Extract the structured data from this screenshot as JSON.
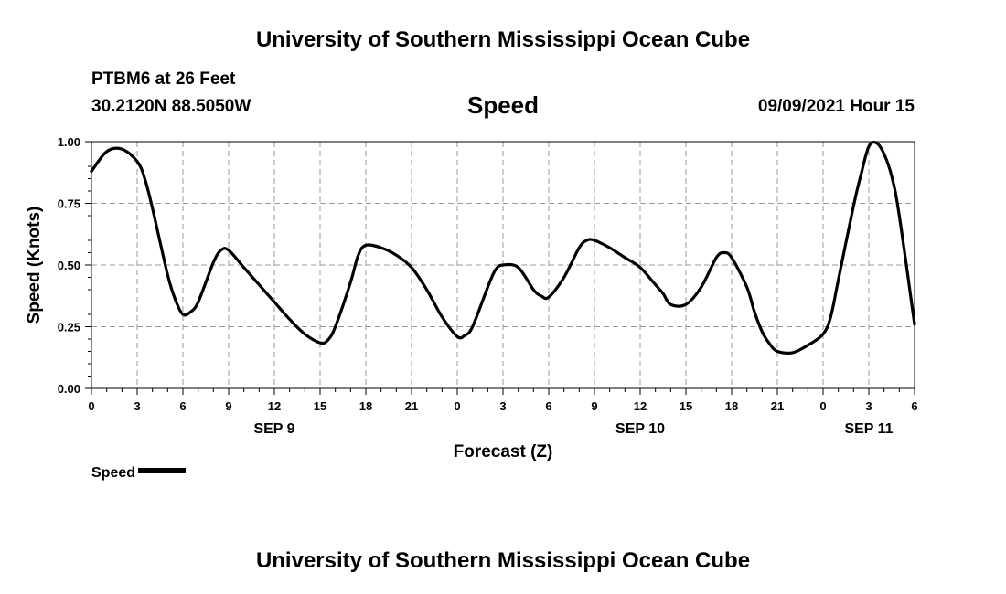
{
  "header": {
    "org_title_top": "University of Southern Mississippi Ocean Cube",
    "org_title_bottom": "University of Southern Mississippi Ocean Cube",
    "station": "PTBM6 at 26 Feet",
    "coords": "30.2120N  88.5050W",
    "timestamp": "09/09/2021 Hour 15"
  },
  "legend": {
    "label": "Speed"
  },
  "colors": {
    "line": "#000000",
    "grid": "#999999",
    "background": "#ffffff"
  },
  "chart_data": {
    "type": "line",
    "title": "Speed",
    "xlabel": "Forecast (Z)",
    "ylabel": "Speed (Knots)",
    "xlim": [
      0,
      54
    ],
    "ylim": [
      0,
      1
    ],
    "x_tick_values": [
      0,
      3,
      6,
      9,
      12,
      15,
      18,
      21,
      24,
      27,
      30,
      33,
      36,
      39,
      42,
      45,
      48,
      51,
      54
    ],
    "x_tick_labels": [
      "0",
      "3",
      "6",
      "9",
      "12",
      "15",
      "18",
      "21",
      "0",
      "3",
      "6",
      "9",
      "12",
      "15",
      "18",
      "21",
      "0",
      "3",
      "6"
    ],
    "y_tick_values": [
      0,
      0.25,
      0.5,
      0.75,
      1.0
    ],
    "y_tick_labels": [
      "0.00",
      "0.25",
      "0.50",
      "0.75",
      "1.00"
    ],
    "date_labels": [
      {
        "x": 12,
        "label": "SEP 9"
      },
      {
        "x": 36,
        "label": "SEP 10"
      },
      {
        "x": 51,
        "label": "SEP 11"
      }
    ],
    "grid": true,
    "series": [
      {
        "name": "Speed",
        "x": [
          0,
          1,
          2,
          3,
          3.5,
          4,
          5,
          5.5,
          6,
          6.5,
          7,
          8,
          8.5,
          9,
          10,
          11,
          12,
          13,
          14,
          15,
          15.5,
          16,
          17,
          17.5,
          18,
          19,
          20,
          21,
          22,
          23,
          24,
          24.5,
          25,
          26,
          26.5,
          27,
          28,
          29,
          29.5,
          30,
          31,
          32,
          32.5,
          33,
          34,
          35,
          36,
          37,
          37.5,
          38,
          39,
          40,
          41,
          41.5,
          42,
          43,
          43.5,
          44,
          44.5,
          45,
          46,
          47,
          48,
          48.5,
          49,
          50,
          50.5,
          51,
          51.5,
          52,
          52.5,
          53,
          54
        ],
        "values": [
          0.88,
          0.96,
          0.97,
          0.92,
          0.85,
          0.73,
          0.46,
          0.36,
          0.3,
          0.31,
          0.35,
          0.51,
          0.56,
          0.56,
          0.49,
          0.42,
          0.35,
          0.28,
          0.22,
          0.185,
          0.195,
          0.25,
          0.43,
          0.54,
          0.58,
          0.57,
          0.54,
          0.49,
          0.4,
          0.29,
          0.21,
          0.215,
          0.25,
          0.41,
          0.48,
          0.5,
          0.49,
          0.4,
          0.375,
          0.37,
          0.45,
          0.57,
          0.6,
          0.6,
          0.57,
          0.53,
          0.49,
          0.42,
          0.385,
          0.34,
          0.34,
          0.41,
          0.53,
          0.55,
          0.53,
          0.41,
          0.31,
          0.23,
          0.18,
          0.15,
          0.145,
          0.175,
          0.22,
          0.29,
          0.44,
          0.74,
          0.87,
          0.98,
          0.995,
          0.95,
          0.86,
          0.7,
          0.26
        ]
      }
    ]
  }
}
